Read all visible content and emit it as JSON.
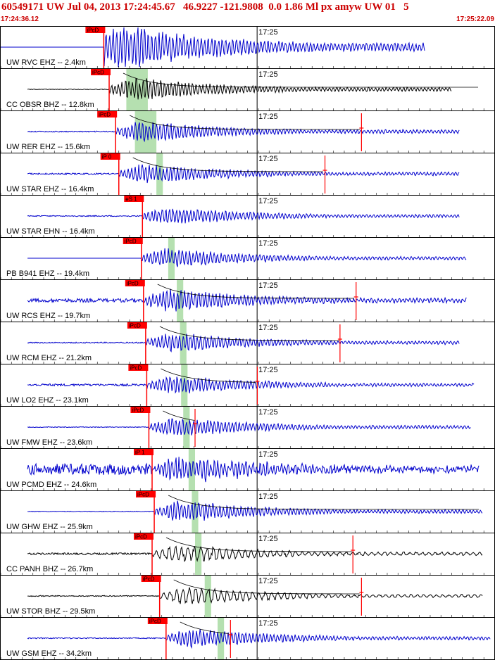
{
  "header": {
    "title": "60549171 UW Jul 04, 2013 17:24:45.67   46.9227 -121.9808  0.0 1.86 Ml px amyw UW 01   5",
    "start_time": "17:24:36.12",
    "end_time": "17:25:22.09"
  },
  "colors": {
    "header_red": "#cc0000",
    "pick_red": "#ff0000",
    "trace_blue": "#0000cc",
    "trace_black": "#000000",
    "theoretical_band_green": "#b5e0b0",
    "decay_curve_black": "#000000",
    "decay_curve_red": "#cc0000"
  },
  "chart_data": {
    "type": "line",
    "title": "60549171 UW Jul 04, 2013 17:24:45.67   46.9227 -121.9808  0.0 1.86 Ml px amyw UW 01   5",
    "x_label_start": "17:24:36.12",
    "x_label_end": "17:25:22.09",
    "time_range_seconds": [
      0,
      45.97
    ],
    "tick_label": "17:25",
    "tick_time_s": 23.88,
    "grid": true,
    "traces": [
      {
        "label": "UW RVC EHZ -- 2.4km",
        "pick": "iPcD",
        "pick_s": 9.6,
        "end_s": 39.5,
        "color": "blue",
        "amp": 1.8,
        "noise": 0,
        "clipped": true,
        "decay": false
      },
      {
        "label": "CC OBSR BHZ -- 12.8km",
        "pick": "iPcD",
        "pick_s": 10.1,
        "end_s": 42.0,
        "color": "black",
        "amp": 0.65,
        "noise": 0.02,
        "clipped": false,
        "decay": true,
        "coda_s": 0,
        "band_s": [
          11.7,
          13.7
        ]
      },
      {
        "label": "UW RER EHZ -- 15.6km",
        "pick": "iPcD",
        "pick_s": 10.7,
        "end_s": 42.7,
        "color": "blue",
        "amp": 0.6,
        "noise": 0.03,
        "clipped": false,
        "decay": true,
        "coda_s": 33.6,
        "band_s": [
          12.5,
          14.5
        ]
      },
      {
        "label": "UW STAR EHZ -- 16.4km",
        "pick": "iP 0",
        "pick_s": 11.0,
        "end_s": 42.7,
        "color": "blue",
        "amp": 0.55,
        "noise": 0.04,
        "clipped": false,
        "decay": true,
        "coda_s": 30.2,
        "band_s": [
          14.5,
          15.1
        ]
      },
      {
        "label": "UW STAR EHN -- 16.4km",
        "pick": "eS 1",
        "pick_s": 13.2,
        "end_s": 42.7,
        "color": "blue",
        "amp": 0.5,
        "noise": 0.03,
        "clipped": false,
        "decay": false
      },
      {
        "label": "PB B941 EHZ -- 19.4km",
        "pick": "iPcD",
        "pick_s": 13.1,
        "end_s": 43.4,
        "color": "blue",
        "amp": 0.55,
        "noise": 0,
        "clipped": false,
        "decay": false,
        "band_s": [
          15.6,
          16.2
        ]
      },
      {
        "label": "UW RCS EHZ -- 19.7km",
        "pick": "iPcD",
        "pick_s": 13.3,
        "end_s": 43.4,
        "color": "blue",
        "amp": 0.65,
        "noise": 0.1,
        "clipped": false,
        "decay": true,
        "coda_s": 33.1,
        "band_s": [
          16.4,
          17.0
        ]
      },
      {
        "label": "UW RCM EHZ -- 21.2km",
        "pick": "iPcD",
        "pick_s": 13.5,
        "end_s": 42.7,
        "color": "blue",
        "amp": 0.55,
        "noise": 0.03,
        "clipped": false,
        "decay": true,
        "coda_s": 31.6,
        "band_s": [
          16.7,
          17.3
        ]
      },
      {
        "label": "UW LO2 EHZ -- 23.1km",
        "pick": "iPcD",
        "pick_s": 13.6,
        "end_s": 44.1,
        "color": "blue",
        "amp": 0.5,
        "noise": 0.06,
        "clipped": false,
        "decay": true,
        "coda_s": 23.9,
        "band_s": [
          16.8,
          17.4
        ]
      },
      {
        "label": "UW FMW EHZ -- 23.6km",
        "pick": "iPcD",
        "pick_s": 13.8,
        "end_s": 43.8,
        "color": "blue",
        "amp": 0.55,
        "noise": 0.02,
        "clipped": false,
        "decay": true,
        "coda_s": 18.1,
        "band_s": [
          17.0,
          17.6
        ]
      },
      {
        "label": "UW PCMD EHZ -- 24.6km",
        "pick": "iP 1",
        "pick_s": 14.1,
        "end_s": 44.6,
        "color": "blue",
        "amp": 0.7,
        "noise": 0.3,
        "clipped": false,
        "decay": false,
        "band_s": [
          17.5,
          18.1
        ]
      },
      {
        "label": "UW GHW EHZ -- 25.9km",
        "pick": "iPcD",
        "pick_s": 14.3,
        "end_s": 44.9,
        "color": "blue",
        "amp": 0.6,
        "noise": 0.02,
        "clipped": false,
        "decay": true,
        "coda_s": 0,
        "band_s": [
          17.8,
          18.4
        ]
      },
      {
        "label": "CC PANH BHZ -- 26.7km",
        "pick": "iPcD",
        "pick_s": 14.1,
        "end_s": 44.9,
        "color": "black",
        "amp": 0.5,
        "noise": 0.05,
        "clipped": false,
        "decay": true,
        "coda_s": 32.8,
        "band_s": [
          18.1,
          18.7
        ]
      },
      {
        "label": "UW STOR BHZ -- 29.5km",
        "pick": "iPcD",
        "pick_s": 14.8,
        "end_s": 44.9,
        "color": "black",
        "amp": 0.5,
        "noise": 0.03,
        "clipped": false,
        "decay": true,
        "coda_s": 33.6,
        "band_s": [
          19.0,
          19.6
        ]
      },
      {
        "label": "UW GSM EHZ -- 34.2km",
        "pick": "iPcD",
        "pick_s": 15.4,
        "end_s": 45.6,
        "color": "blue",
        "amp": 0.55,
        "noise": 0.03,
        "clipped": false,
        "decay": true,
        "coda_s": 21.4,
        "band_s": [
          20.2,
          20.8
        ]
      }
    ]
  }
}
